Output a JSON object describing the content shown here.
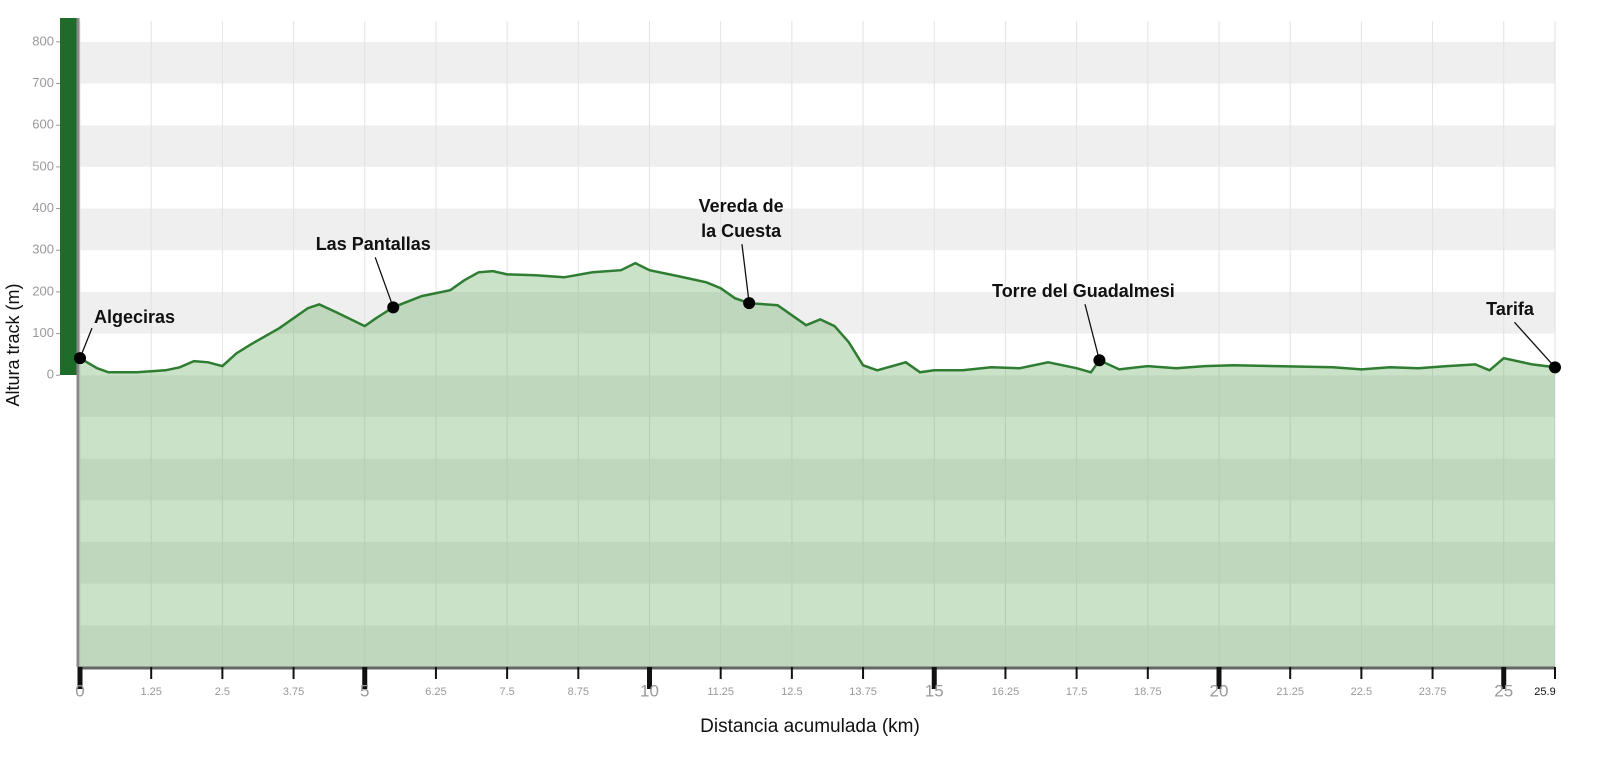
{
  "chart_data": {
    "type": "area",
    "x_label": "Distancia acumulada (km)",
    "y_label": "Altura track (m)",
    "x": [
      0,
      0.3,
      0.5,
      1.0,
      1.5,
      1.75,
      2.0,
      2.25,
      2.5,
      2.75,
      3.0,
      3.5,
      4.0,
      4.2,
      4.5,
      5.0,
      5.2,
      5.5,
      6.0,
      6.5,
      6.75,
      7.0,
      7.25,
      7.5,
      8.0,
      8.5,
      9.0,
      9.5,
      9.75,
      10.0,
      10.5,
      11.0,
      11.25,
      11.5,
      11.75,
      12.25,
      12.75,
      13.0,
      13.25,
      13.5,
      13.75,
      14.0,
      14.5,
      14.75,
      15.0,
      15.5,
      16.0,
      16.5,
      17.0,
      17.5,
      17.75,
      17.9,
      18.25,
      18.75,
      19.25,
      19.75,
      20.25,
      21.0,
      22.0,
      22.5,
      23.0,
      23.5,
      24.0,
      24.5,
      24.75,
      25.0,
      25.5,
      25.9
    ],
    "values": [
      41,
      17,
      7,
      7,
      12,
      19,
      34,
      31,
      22,
      53,
      74,
      113,
      161,
      170,
      151,
      118,
      137,
      163,
      190,
      204,
      228,
      247,
      250,
      242,
      240,
      235,
      247,
      252,
      269,
      252,
      238,
      223,
      209,
      185,
      173,
      168,
      120,
      134,
      118,
      79,
      24,
      12,
      31,
      7,
      12,
      12,
      19,
      17,
      31,
      17,
      7,
      36,
      14,
      22,
      17,
      22,
      24,
      22,
      19,
      14,
      19,
      17,
      22,
      26,
      12,
      41,
      26,
      19
    ],
    "color": "#2e7d32",
    "xlim": [
      0,
      25.9
    ],
    "xticks": [
      0,
      1.25,
      2.5,
      3.75,
      5,
      6.25,
      7.5,
      8.75,
      10,
      11.25,
      12.5,
      13.75,
      15,
      16.25,
      17.5,
      18.75,
      20,
      21.25,
      22.5,
      23.75,
      25,
      25.9
    ],
    "major_xticks": [
      0,
      5,
      10,
      15,
      20,
      25
    ],
    "ylim": [
      -700,
      850
    ],
    "yticks": [
      0,
      100,
      200,
      300,
      400,
      500,
      600,
      700,
      800
    ],
    "grid": true,
    "annotations": [
      {
        "lines": [
          "Algeciras"
        ],
        "x": 0,
        "y": 41
      },
      {
        "lines": [
          "Las Pantallas"
        ],
        "x": 5.5,
        "y": 163
      },
      {
        "lines": [
          "Vereda de",
          "la Cuesta"
        ],
        "x": 11.75,
        "y": 173
      },
      {
        "lines": [
          "Torre del Guadalmesi"
        ],
        "x": 17.9,
        "y": 36
      },
      {
        "lines": [
          "Tarifa"
        ],
        "x": 25.9,
        "y": 19
      }
    ]
  }
}
